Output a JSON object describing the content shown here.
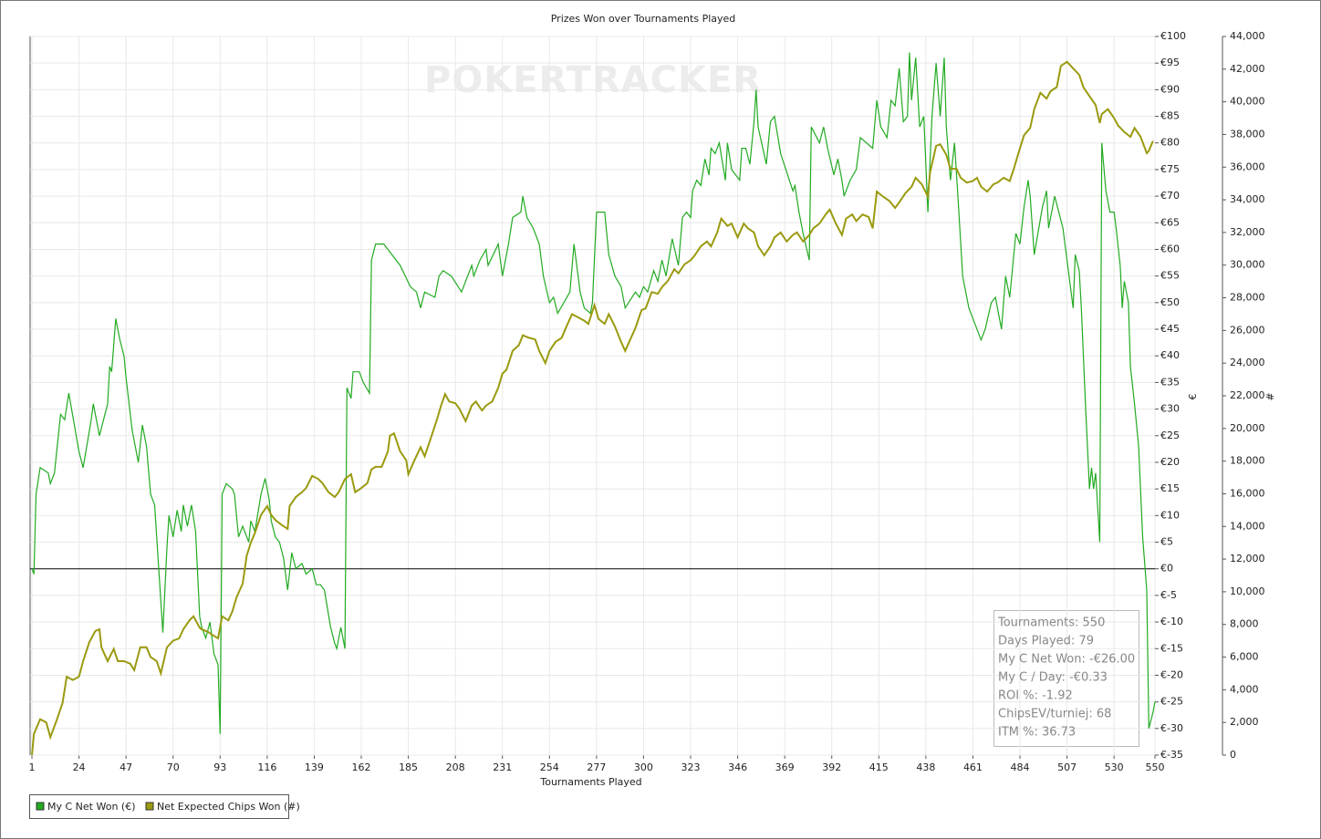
{
  "chart_data": {
    "type": "line",
    "title": "Prizes Won over Tournaments Played",
    "watermark": "POKERTRACKER",
    "x_label": "Tournaments Played",
    "y_label": "€",
    "y2_label": "#",
    "grid": true,
    "xlim": [
      1,
      550
    ],
    "xticks": [
      1,
      24,
      47,
      70,
      93,
      116,
      139,
      162,
      185,
      208,
      231,
      254,
      277,
      300,
      323,
      346,
      369,
      392,
      415,
      438,
      461,
      484,
      507,
      530,
      550
    ],
    "ylim": [
      -35,
      100
    ],
    "yticks": [
      {
        "value": 100,
        "label": "€100"
      },
      {
        "value": 95,
        "label": "€95"
      },
      {
        "value": 90,
        "label": "€90"
      },
      {
        "value": 85,
        "label": "€85"
      },
      {
        "value": 80,
        "label": "€80"
      },
      {
        "value": 75,
        "label": "€75"
      },
      {
        "value": 70,
        "label": "€70"
      },
      {
        "value": 65,
        "label": "€65"
      },
      {
        "value": 60,
        "label": "€60"
      },
      {
        "value": 55,
        "label": "€55"
      },
      {
        "value": 50,
        "label": "€50"
      },
      {
        "value": 45,
        "label": "€45"
      },
      {
        "value": 40,
        "label": "€40"
      },
      {
        "value": 35,
        "label": "€35"
      },
      {
        "value": 30,
        "label": "€30"
      },
      {
        "value": 25,
        "label": "€25"
      },
      {
        "value": 20,
        "label": "€20"
      },
      {
        "value": 15,
        "label": "€15"
      },
      {
        "value": 10,
        "label": "€10"
      },
      {
        "value": 5,
        "label": "€5"
      },
      {
        "value": 0,
        "label": "€0"
      },
      {
        "value": -5,
        "label": "€-5"
      },
      {
        "value": -10,
        "label": "€-10"
      },
      {
        "value": -15,
        "label": "€-15"
      },
      {
        "value": -20,
        "label": "€-20"
      },
      {
        "value": -25,
        "label": "€-25"
      },
      {
        "value": -30,
        "label": "€-30"
      },
      {
        "value": -35,
        "label": "€-35"
      }
    ],
    "y2lim": [
      0,
      44000
    ],
    "y2ticks": [
      {
        "value": 44000,
        "label": "44,000"
      },
      {
        "value": 42000,
        "label": "42,000"
      },
      {
        "value": 40000,
        "label": "40,000"
      },
      {
        "value": 38000,
        "label": "38,000"
      },
      {
        "value": 36000,
        "label": "36,000"
      },
      {
        "value": 34000,
        "label": "34,000"
      },
      {
        "value": 32000,
        "label": "32,000"
      },
      {
        "value": 30000,
        "label": "30,000"
      },
      {
        "value": 28000,
        "label": "28,000"
      },
      {
        "value": 26000,
        "label": "26,000"
      },
      {
        "value": 24000,
        "label": "24,000"
      },
      {
        "value": 22000,
        "label": "22,000"
      },
      {
        "value": 20000,
        "label": "20,000"
      },
      {
        "value": 18000,
        "label": "18,000"
      },
      {
        "value": 16000,
        "label": "16,000"
      },
      {
        "value": 14000,
        "label": "14,000"
      },
      {
        "value": 12000,
        "label": "12,000"
      },
      {
        "value": 10000,
        "label": "10,000"
      },
      {
        "value": 8000,
        "label": "8,000"
      },
      {
        "value": 6000,
        "label": "6,000"
      },
      {
        "value": 4000,
        "label": "4,000"
      },
      {
        "value": 2000,
        "label": "2,000"
      },
      0
    ],
    "series": [
      {
        "name": "My C Net Won (€)",
        "color": "#22aa22",
        "axis": "y",
        "x": [
          1,
          2,
          3,
          5,
          9,
          10,
          12,
          15,
          17,
          19,
          24,
          26,
          30,
          31,
          34,
          38,
          39,
          40,
          42,
          44,
          46,
          47,
          50,
          53,
          55,
          57,
          59,
          61,
          63,
          65,
          67,
          68,
          70,
          72,
          74,
          75,
          77,
          79,
          81,
          83,
          84,
          86,
          88,
          90,
          92,
          93,
          94,
          96,
          99,
          100,
          102,
          104,
          107,
          108,
          110,
          113,
          115,
          117,
          118,
          120,
          122,
          124,
          126,
          128,
          130,
          133,
          135,
          138,
          140,
          142,
          144,
          147,
          149,
          150,
          152,
          154,
          155,
          157,
          158,
          161,
          163,
          166,
          167,
          169,
          173,
          175,
          181,
          186,
          189,
          191,
          193,
          198,
          200,
          202,
          206,
          211,
          216,
          217,
          220,
          223,
          224,
          229,
          231,
          234,
          236,
          240,
          241,
          243,
          246,
          249,
          251,
          254,
          256,
          258,
          261,
          264,
          266,
          269,
          271,
          274,
          275,
          277,
          281,
          283,
          286,
          289,
          291,
          296,
          298,
          300,
          302,
          305,
          307,
          309,
          311,
          314,
          317,
          319,
          321,
          323,
          324,
          326,
          328,
          330,
          332,
          333,
          335,
          337,
          340,
          341,
          343,
          347,
          348,
          350,
          352,
          354,
          355,
          356,
          360,
          362,
          364,
          367,
          373,
          374,
          376,
          378,
          381,
          382,
          386,
          388,
          390,
          393,
          395,
          397,
          398,
          401,
          404,
          406,
          412,
          414,
          416,
          419,
          421,
          423,
          425,
          427,
          429,
          430,
          431,
          433,
          435,
          437,
          439,
          441,
          443,
          445,
          447,
          448,
          450,
          452,
          454,
          456,
          459,
          462,
          465,
          467,
          470,
          472,
          475,
          477,
          479,
          482,
          484,
          486,
          488,
          489,
          491,
          495,
          497,
          498,
          501,
          505,
          507,
          510,
          511,
          513,
          514,
          516,
          518,
          519,
          520,
          521,
          523,
          524,
          526,
          528,
          530,
          531,
          533,
          534,
          535,
          537,
          538,
          540,
          542,
          544,
          546,
          547,
          549,
          550
        ],
        "values": [
          0,
          -1,
          14,
          19,
          18,
          16,
          18,
          29,
          28,
          33,
          22,
          19,
          28,
          31,
          25,
          31,
          38,
          37,
          47,
          43,
          40,
          36,
          26,
          20,
          27,
          23,
          14,
          12,
          0,
          -12,
          4,
          10,
          6,
          11,
          7,
          12,
          8,
          12,
          7,
          -9,
          -11,
          -13,
          -10,
          -16,
          -18,
          -31,
          14,
          16,
          15,
          14,
          6,
          8,
          5,
          9,
          7,
          14,
          17,
          13,
          9,
          6,
          5,
          2,
          -4,
          3,
          0,
          1,
          -1,
          0,
          -3,
          -3,
          -4,
          -11,
          -14,
          -15,
          -11,
          -15,
          34,
          32,
          37,
          37,
          35,
          33,
          58,
          61,
          61,
          60,
          57,
          53,
          52,
          49,
          52,
          51,
          55,
          56,
          55,
          52,
          57,
          55,
          58,
          60,
          57,
          61,
          55,
          61,
          66,
          67,
          70,
          66,
          64,
          61,
          55,
          50,
          51,
          48,
          50,
          52,
          61,
          52,
          49,
          48,
          50,
          67,
          67,
          59,
          55,
          53,
          49,
          52,
          51,
          53,
          52,
          56,
          54,
          58,
          55,
          62,
          57,
          66,
          67,
          66,
          71,
          73,
          72,
          77,
          74,
          79,
          78,
          80,
          73,
          80,
          75,
          73,
          79,
          79,
          76,
          84,
          90,
          83,
          76,
          84,
          85,
          78,
          71,
          72,
          67,
          63,
          58,
          83,
          80,
          83,
          79,
          74,
          77,
          73,
          70,
          73,
          75,
          81,
          79,
          88,
          83,
          81,
          88,
          87,
          94,
          84,
          85,
          97,
          88,
          96,
          83,
          85,
          67,
          85,
          95,
          85,
          96,
          83,
          73,
          80,
          68,
          55,
          49,
          46,
          43,
          45,
          50,
          51,
          45,
          55,
          51,
          63,
          61,
          68,
          73,
          70,
          59,
          68,
          71,
          64,
          70,
          64,
          58,
          49,
          59,
          56,
          49,
          31,
          15,
          19,
          15,
          18,
          5,
          80,
          71,
          67,
          67,
          64,
          57,
          49,
          54,
          50,
          38,
          31,
          23,
          6,
          -4,
          -30,
          -27,
          -25
        ]
      },
      {
        "name": "Net Expected Chips Won (#)",
        "color": "#9a9a10",
        "axis": "y2",
        "x": [
          1,
          2,
          5,
          8,
          10,
          13,
          16,
          18,
          21,
          24,
          26,
          29,
          32,
          34,
          35,
          38,
          41,
          43,
          46,
          49,
          51,
          54,
          57,
          59,
          62,
          64,
          67,
          70,
          73,
          75,
          78,
          80,
          83,
          84,
          87,
          90,
          92,
          94,
          97,
          99,
          101,
          104,
          106,
          108,
          110,
          113,
          116,
          118,
          120,
          123,
          126,
          127,
          130,
          133,
          135,
          138,
          141,
          143,
          146,
          149,
          151,
          154,
          157,
          159,
          162,
          165,
          167,
          169,
          172,
          175,
          176,
          178,
          181,
          184,
          185,
          188,
          191,
          193,
          196,
          199,
          201,
          203,
          205,
          208,
          210,
          213,
          216,
          218,
          221,
          223,
          226,
          229,
          231,
          233,
          236,
          239,
          241,
          244,
          247,
          249,
          252,
          254,
          257,
          260,
          262,
          265,
          268,
          271,
          273,
          276,
          278,
          281,
          283,
          286,
          289,
          291,
          293,
          296,
          299,
          301,
          304,
          307,
          309,
          312,
          315,
          317,
          320,
          323,
          325,
          328,
          331,
          333,
          336,
          338,
          341,
          343,
          346,
          349,
          351,
          354,
          356,
          359,
          362,
          364,
          367,
          370,
          373,
          375,
          378,
          381,
          383,
          386,
          389,
          391,
          394,
          397,
          399,
          402,
          404,
          407,
          410,
          412,
          414,
          417,
          420,
          423,
          425,
          428,
          431,
          433,
          436,
          439,
          440,
          443,
          445,
          448,
          450,
          453,
          455,
          458,
          461,
          463,
          465,
          468,
          471,
          473,
          476,
          479,
          481,
          483,
          486,
          489,
          491,
          494,
          497,
          499,
          502,
          504,
          507,
          510,
          513,
          515,
          518,
          521,
          523,
          524,
          527,
          530,
          532,
          535,
          538,
          540,
          543,
          546,
          547,
          549
        ],
        "values": [
          0,
          1300,
          2200,
          2000,
          1100,
          2100,
          3200,
          4800,
          4600,
          4800,
          5750,
          6900,
          7600,
          7700,
          6600,
          5750,
          6500,
          5750,
          5750,
          5600,
          5200,
          6600,
          6600,
          6000,
          5750,
          5000,
          6600,
          7000,
          7150,
          7700,
          8250,
          8500,
          7800,
          7700,
          7550,
          7300,
          7150,
          8500,
          8250,
          8800,
          9650,
          10500,
          12200,
          13000,
          13600,
          14700,
          15250,
          14700,
          14400,
          14100,
          13850,
          15250,
          15800,
          16100,
          16350,
          17100,
          16900,
          16650,
          16100,
          15800,
          16100,
          16900,
          17200,
          16100,
          16350,
          16650,
          17500,
          17650,
          17650,
          18600,
          19550,
          19700,
          18600,
          18050,
          17200,
          18050,
          18850,
          18300,
          19400,
          20550,
          21400,
          22100,
          21650,
          21550,
          21200,
          20450,
          21400,
          21650,
          21100,
          21400,
          21650,
          22500,
          23350,
          23600,
          24750,
          25100,
          25700,
          25550,
          25450,
          24750,
          24000,
          24750,
          25300,
          25550,
          26150,
          27000,
          26800,
          26600,
          26400,
          27550,
          26700,
          26400,
          27000,
          26250,
          25300,
          24750,
          25300,
          26150,
          27250,
          27350,
          28350,
          28250,
          28650,
          29050,
          29750,
          29500,
          30050,
          30300,
          30600,
          31150,
          31450,
          31150,
          32000,
          32850,
          32400,
          32550,
          31700,
          32550,
          32250,
          32000,
          31150,
          30600,
          31150,
          31700,
          32000,
          31450,
          31850,
          32000,
          31450,
          31850,
          32250,
          32550,
          33100,
          33400,
          32550,
          31850,
          32850,
          33100,
          32700,
          33100,
          32950,
          32250,
          34500,
          34200,
          33950,
          33500,
          33850,
          34400,
          34800,
          35350,
          34950,
          34200,
          35650,
          37300,
          37400,
          36750,
          35900,
          35900,
          35350,
          35050,
          35150,
          35350,
          34800,
          34500,
          34950,
          35050,
          35350,
          35150,
          35900,
          36750,
          37950,
          38400,
          39550,
          40550,
          40200,
          40650,
          40900,
          42200,
          42450,
          42050,
          41650,
          40900,
          40350,
          39800,
          38700,
          39250,
          39550,
          39000,
          38550,
          38150,
          37850,
          38400,
          37850,
          36850,
          37000,
          37600
        ]
      }
    ],
    "stats": [
      "Tournaments: 550",
      "Days Played: 79",
      "My C Net Won: -€26.00",
      "My C / Day: -€0.33",
      "ROI %: -1.92",
      "ChipsEV/turniej: 68",
      "ITM %: 36.73"
    ]
  }
}
